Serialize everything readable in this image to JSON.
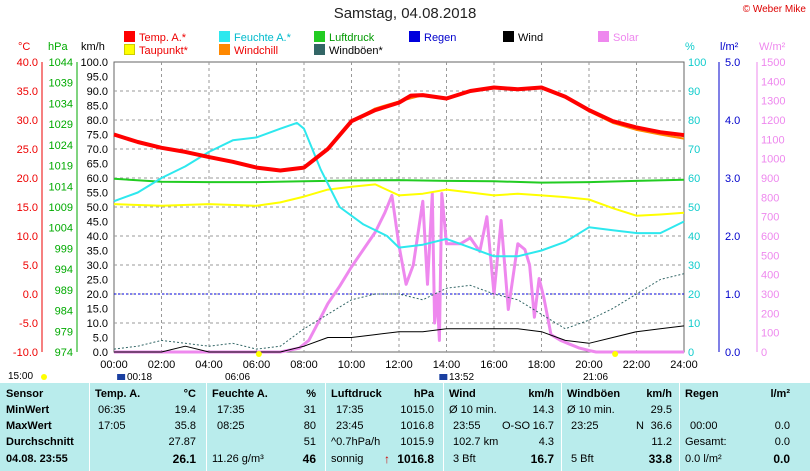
{
  "title": "Samstag, 04.08.2018",
  "copyright": "© Weber Mike",
  "legend": [
    {
      "label": "Temp. A.*",
      "color": "#ff0000"
    },
    {
      "label": "Feuchte A.*",
      "color": "#2ee8ee"
    },
    {
      "label": "Luftdruck",
      "color": "#22cc22"
    },
    {
      "label": "Regen",
      "color": "#0000dd"
    },
    {
      "label": "Wind",
      "color": "#000000"
    },
    {
      "label": "Solar",
      "color": "#ee88ee"
    },
    {
      "label": "Taupunkt*",
      "color": "#ffff00"
    },
    {
      "label": "Windchill",
      "color": "#ff8800"
    },
    {
      "label": "Windböen*",
      "color": "#336666"
    }
  ],
  "colors": {
    "temp": "#ff0000",
    "humidity": "#2ee8ee",
    "pressure": "#22cc22",
    "rain": "#0000dd",
    "wind": "#000000",
    "solar": "#ee88ee",
    "dewpoint": "#ffff00",
    "windchill": "#ff8800",
    "gust": "#336666"
  },
  "chart_data": {
    "type": "line",
    "x_unit": "time of day (h)",
    "xlim": [
      0,
      24
    ],
    "x_ticks": [
      "00:00",
      "02:00",
      "04:00",
      "06:00",
      "08:00",
      "10:00",
      "12:00",
      "14:00",
      "16:00",
      "18:00",
      "20:00",
      "22:00",
      "24:00"
    ],
    "axes": {
      "temp_c": {
        "unit": "°C",
        "range": [
          -10,
          40
        ],
        "ticks": [
          "40.0",
          "35.0",
          "30.0",
          "25.0",
          "20.0",
          "15.0",
          "10.0",
          "5.0",
          "0.0",
          "-5.0",
          "-10.0"
        ]
      },
      "pressure_hpa": {
        "unit": "hPa",
        "range": [
          974,
          1044
        ],
        "ticks": [
          "1044",
          "1039",
          "1034",
          "1029",
          "1024",
          "1019",
          "1014",
          "1009",
          "1004",
          "999",
          "994",
          "989",
          "984",
          "979",
          "974"
        ]
      },
      "wind_kmh": {
        "unit": "km/h",
        "range": [
          0,
          100
        ],
        "ticks": [
          "100.0",
          "95.0",
          "90.0",
          "85.0",
          "80.0",
          "75.0",
          "70.0",
          "65.0",
          "60.0",
          "55.0",
          "50.0",
          "45.0",
          "40.0",
          "35.0",
          "30.0",
          "25.0",
          "20.0",
          "15.0",
          "10.0",
          "5.0",
          "0.0"
        ]
      },
      "humidity_pct": {
        "unit": "%",
        "range": [
          0,
          100
        ],
        "ticks": [
          "100",
          "90",
          "80",
          "70",
          "60",
          "50",
          "40",
          "30",
          "20",
          "10",
          "0"
        ]
      },
      "rain_lm2": {
        "unit": "l/m²",
        "range": [
          0,
          5
        ],
        "ticks": [
          "5.0",
          "4.0",
          "3.0",
          "2.0",
          "1.0",
          "0.0"
        ]
      },
      "solar_wm2": {
        "unit": "W/m²",
        "range": [
          0,
          1500
        ],
        "ticks": [
          "1500",
          "1400",
          "1300",
          "1200",
          "1100",
          "1000",
          "900",
          "800",
          "700",
          "600",
          "500",
          "400",
          "300",
          "200",
          "100",
          "0"
        ]
      }
    },
    "series": [
      {
        "name": "Temp. A.*",
        "axis": "temp_c",
        "x": [
          0,
          1,
          2,
          3,
          4,
          5,
          6,
          7,
          8,
          9,
          10,
          11,
          12,
          12.5,
          13,
          14,
          15,
          16,
          17,
          18,
          19,
          20,
          21,
          22,
          23,
          24
        ],
        "y": [
          27.5,
          26.2,
          25.2,
          24.5,
          23.6,
          22.8,
          21.8,
          21.3,
          21.8,
          25.0,
          29.8,
          31.7,
          33.0,
          34.2,
          34.3,
          33.7,
          35.0,
          35.6,
          35.3,
          35.6,
          34.0,
          31.7,
          29.8,
          28.7,
          27.9,
          27.4
        ]
      },
      {
        "name": "Windchill",
        "axis": "temp_c",
        "x": [
          0,
          1,
          2,
          3,
          4,
          5,
          6,
          7,
          8,
          9,
          10,
          11,
          12,
          13,
          14,
          15,
          16,
          17,
          18,
          19,
          20,
          21,
          22,
          23,
          24
        ],
        "y": [
          27.5,
          26.2,
          25.2,
          24.5,
          23.6,
          22.8,
          21.8,
          21.3,
          21.8,
          25.0,
          29.8,
          32.0,
          33.2,
          34.3,
          33.7,
          35.0,
          35.6,
          35.3,
          35.6,
          34.0,
          31.5,
          29.5,
          28.3,
          27.5,
          26.8
        ]
      },
      {
        "name": "Taupunkt*",
        "axis": "temp_c",
        "x": [
          0,
          2,
          4,
          6,
          7,
          8,
          9,
          10,
          11,
          12,
          13,
          14,
          15,
          16,
          17,
          18,
          19,
          20,
          21,
          22,
          23,
          24
        ],
        "y": [
          15.5,
          15.2,
          15.5,
          15.2,
          15.8,
          16.8,
          18.0,
          18.5,
          18.9,
          17.0,
          17.3,
          18.0,
          17.5,
          17.0,
          17.3,
          17.0,
          16.7,
          16.3,
          14.8,
          13.5,
          13.7,
          14.0
        ]
      },
      {
        "name": "Feuchte A.*",
        "axis": "humidity_pct",
        "x": [
          0,
          1,
          2,
          3,
          4,
          5,
          6,
          7,
          7.7,
          8,
          8.7,
          9.5,
          10.5,
          11.5,
          12,
          13,
          14,
          15,
          16,
          17,
          18,
          19,
          20,
          21,
          22,
          23,
          24
        ],
        "y": [
          52,
          55,
          60,
          64,
          69,
          73,
          74,
          77,
          79,
          77,
          63,
          50,
          44,
          40,
          36,
          37,
          39,
          36,
          33,
          33,
          35,
          38,
          43,
          42,
          41,
          41,
          45
        ]
      },
      {
        "name": "Luftdruck",
        "axis": "pressure_hpa",
        "x": [
          0,
          2,
          4,
          6,
          8,
          10,
          12,
          14,
          16,
          18,
          20,
          22,
          24
        ],
        "y": [
          1015.8,
          1015.1,
          1015.0,
          1015.0,
          1015.2,
          1015.4,
          1015.5,
          1015.3,
          1015.2,
          1014.9,
          1015.0,
          1015.3,
          1015.6
        ]
      },
      {
        "name": "Solar",
        "axis": "solar_wm2",
        "x": [
          0,
          7,
          7.8,
          8.2,
          8.5,
          9,
          9.5,
          10,
          10.5,
          11,
          11.4,
          11.7,
          12,
          12.3,
          12.6,
          13,
          13.2,
          13.4,
          13.5,
          13.6,
          13.7,
          13.8,
          14,
          14.3,
          14.6,
          15,
          15.4,
          15.7,
          16,
          16.3,
          16.6,
          17,
          17.3,
          17.5,
          17.7,
          17.9,
          18.1,
          18.4,
          18.8,
          19.2,
          19.6,
          20,
          20.3,
          24
        ],
        "y": [
          0,
          0,
          20,
          60,
          130,
          250,
          340,
          440,
          530,
          620,
          720,
          810,
          550,
          350,
          450,
          780,
          350,
          820,
          150,
          300,
          60,
          820,
          560,
          560,
          560,
          590,
          520,
          700,
          300,
          680,
          220,
          560,
          530,
          450,
          180,
          380,
          280,
          90,
          60,
          40,
          20,
          8,
          0,
          0
        ]
      },
      {
        "name": "Wind",
        "axis": "wind_kmh",
        "x": [
          0,
          2,
          3,
          4,
          5,
          6,
          7,
          8,
          9,
          10,
          11,
          12,
          13,
          14,
          15,
          16,
          17,
          18,
          19,
          20,
          21,
          22,
          23,
          24
        ],
        "y": [
          0,
          0,
          2,
          0,
          0,
          0,
          0,
          2,
          5,
          5,
          6,
          7,
          7,
          8,
          8,
          8,
          8,
          7,
          4,
          3,
          5,
          7,
          8,
          9
        ]
      },
      {
        "name": "Windböen*",
        "axis": "wind_kmh",
        "x": [
          0,
          1,
          2,
          3,
          4,
          5,
          6,
          7,
          8,
          9,
          10,
          11,
          12,
          13,
          14,
          15,
          16,
          17,
          18,
          19,
          20,
          21,
          22,
          23,
          24
        ],
        "y": [
          1,
          2,
          4,
          3,
          2,
          3,
          1,
          2,
          8,
          13,
          18,
          20,
          20,
          18,
          22,
          23,
          20,
          18,
          13,
          8,
          11,
          15,
          20,
          25,
          27
        ]
      },
      {
        "name": "Regen",
        "axis": "rain_lm2",
        "x": [
          0,
          24
        ],
        "y": [
          1,
          1
        ]
      }
    ],
    "sun_times": [
      "06:06",
      "21:06"
    ],
    "moon_times": [
      "00:18",
      "13:52"
    ],
    "day_start_label": "15:00"
  },
  "table": {
    "row_labels": [
      "Sensor",
      "MinWert",
      "MaxWert",
      "Durchschnitt",
      "04.08. 23:55"
    ],
    "temp": {
      "header": "Temp. A.",
      "unit": "°C",
      "min_time": "06:35",
      "min": "19.4",
      "max_time": "17:05",
      "max": "35.8",
      "avg": "27.87",
      "current": "26.1"
    },
    "humidity": {
      "header": "Feuchte A.",
      "unit": "%",
      "min_time": "17:35",
      "min": "31",
      "max_time": "08:25",
      "max": "80",
      "avg": "51",
      "abs": "11.26 g/m³",
      "current": "46"
    },
    "pressure": {
      "header": "Luftdruck",
      "unit": "hPa",
      "min_time": "17:35",
      "min": "1015.0",
      "max_time": "23:45",
      "max": "1016.8",
      "trend": "^0.7hPa/h",
      "avg": "1015.9",
      "forecast": "sonnig",
      "current": "1016.8",
      "arrow": "↑"
    },
    "wind": {
      "header": "Wind",
      "unit": "km/h",
      "r1_label": "Ø 10 min.",
      "r1_val": "14.3",
      "r2_time": "23:55",
      "r2_dir": "O-SO",
      "r2_val": "16.7",
      "r3_label": "102.7 km",
      "r3_val": "4.3",
      "r4_label": "3 Bft",
      "current": "16.7"
    },
    "gust": {
      "header": "Windböen",
      "unit": "km/h",
      "r1_label": "Ø 10 min.",
      "r1_val": "29.5",
      "r2_time": "23:25",
      "r2_dir": "N",
      "r2_val": "36.6",
      "r3_val": "11.2",
      "r4_label": "5 Bft",
      "current": "33.8"
    },
    "rain": {
      "header": "Regen",
      "unit": "l/m²",
      "r2_time": "00:00",
      "r2_val": "0.0",
      "r3_label": "Gesamt:",
      "r3_val": "0.0",
      "r4_val": "0.0 l/m²",
      "current": "0.0"
    }
  }
}
